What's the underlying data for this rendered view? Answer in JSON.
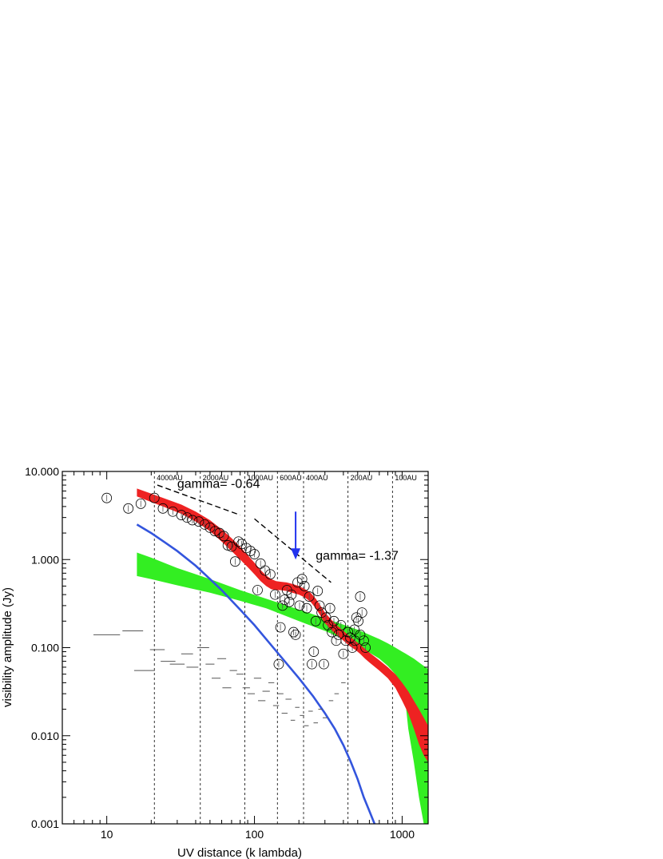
{
  "chart_data": {
    "type": "scatter",
    "xlabel": "UV distance  (k lambda)",
    "ylabel": "visibility amplitude (Jy)",
    "xscale": "log",
    "yscale": "log",
    "xlim": [
      5,
      1500
    ],
    "ylim": [
      0.001,
      10
    ],
    "x_tick_labels": [
      {
        "value": 10,
        "label": "10"
      },
      {
        "value": 100,
        "label": "100"
      },
      {
        "value": 1000,
        "label": "1000"
      }
    ],
    "y_tick_labels": [
      {
        "value": 10,
        "label": "10.000"
      },
      {
        "value": 1,
        "label": "1.000"
      },
      {
        "value": 0.1,
        "label": "0.100"
      },
      {
        "value": 0.01,
        "label": "0.010"
      },
      {
        "value": 0.001,
        "label": "0.001"
      }
    ],
    "scale_lines": [
      {
        "x": 21,
        "label": "4000AU"
      },
      {
        "x": 43,
        "label": "2000AU"
      },
      {
        "x": 86,
        "label": "1000AU"
      },
      {
        "x": 143,
        "label": "600AU"
      },
      {
        "x": 215,
        "label": "400AU"
      },
      {
        "x": 430,
        "label": "200AU"
      },
      {
        "x": 860,
        "label": "100AU"
      }
    ],
    "annotations": [
      {
        "text": "gamma= -0.64",
        "x": 30,
        "y": 6.5
      },
      {
        "text": "gamma= -1.37",
        "x": 260,
        "y": 1.0
      }
    ],
    "colors": {
      "red_band": "#ee2222",
      "green_band": "#33ee22",
      "blue_curve": "#3355dd",
      "arrow": "#2233ee",
      "data": "#000000",
      "errorbar": "#555555"
    },
    "red_band": {
      "x": [
        16,
        20,
        25,
        32,
        40,
        50,
        60,
        70,
        80,
        90,
        100,
        110,
        120,
        130,
        140,
        150,
        165,
        180,
        200,
        220,
        240,
        260,
        280,
        300,
        330,
        360,
        400,
        440,
        480,
        520,
        560,
        600,
        700,
        800,
        900,
        1000,
        1100,
        1200,
        1300,
        1400,
        1500
      ],
      "lo": [
        5.2,
        4.5,
        3.9,
        3.3,
        2.7,
        2.1,
        1.6,
        1.25,
        1.0,
        0.82,
        0.68,
        0.57,
        0.5,
        0.46,
        0.45,
        0.45,
        0.44,
        0.42,
        0.4,
        0.37,
        0.33,
        0.28,
        0.23,
        0.19,
        0.16,
        0.14,
        0.12,
        0.105,
        0.095,
        0.085,
        0.075,
        0.068,
        0.055,
        0.045,
        0.035,
        0.025,
        0.018,
        0.012,
        0.008,
        0.006,
        0.005
      ],
      "hi": [
        6.4,
        5.6,
        4.9,
        4.2,
        3.5,
        2.8,
        2.2,
        1.75,
        1.4,
        1.12,
        0.92,
        0.76,
        0.66,
        0.6,
        0.57,
        0.56,
        0.55,
        0.53,
        0.5,
        0.46,
        0.42,
        0.36,
        0.3,
        0.25,
        0.21,
        0.18,
        0.155,
        0.135,
        0.12,
        0.108,
        0.097,
        0.088,
        0.072,
        0.06,
        0.05,
        0.04,
        0.032,
        0.025,
        0.02,
        0.016,
        0.013
      ]
    },
    "green_band": {
      "x": [
        16,
        20,
        30,
        50,
        80,
        120,
        200,
        300,
        400,
        500,
        600,
        700,
        800,
        900,
        1000,
        1050,
        1100,
        1200,
        1300,
        1400,
        1500
      ],
      "lo": [
        0.65,
        0.6,
        0.51,
        0.42,
        0.34,
        0.28,
        0.2,
        0.155,
        0.125,
        0.105,
        0.088,
        0.075,
        0.062,
        0.05,
        0.036,
        0.025,
        0.012,
        0.005,
        0.002,
        0.001,
        0.001
      ],
      "hi": [
        1.2,
        1.05,
        0.8,
        0.6,
        0.45,
        0.36,
        0.27,
        0.215,
        0.182,
        0.16,
        0.14,
        0.125,
        0.112,
        0.1,
        0.09,
        0.086,
        0.082,
        0.075,
        0.068,
        0.062,
        0.057
      ]
    },
    "blue_curve": {
      "x": [
        16,
        20,
        25,
        30,
        40,
        50,
        60,
        80,
        100,
        120,
        150,
        200,
        250,
        300,
        350,
        400,
        450,
        500,
        550,
        600,
        650,
        680
      ],
      "y": [
        2.5,
        2.0,
        1.55,
        1.25,
        0.85,
        0.6,
        0.45,
        0.27,
        0.18,
        0.125,
        0.08,
        0.045,
        0.028,
        0.018,
        0.012,
        0.0078,
        0.005,
        0.0032,
        0.002,
        0.0014,
        0.001,
        0.0009
      ]
    },
    "power_law_lines": [
      {
        "name": "gamma= -0.64",
        "x": [
          22,
          80
        ],
        "y": [
          7.0,
          3.2
        ]
      },
      {
        "name": "gamma= -1.37",
        "x": [
          100,
          330
        ],
        "y": [
          2.9,
          0.55
        ]
      }
    ],
    "arrow": {
      "x": 190,
      "y_from": 3.5,
      "y_to": 1.0
    },
    "circle_points": [
      {
        "x": 10,
        "y": 5.0
      },
      {
        "x": 14,
        "y": 3.8
      },
      {
        "x": 17,
        "y": 4.3
      },
      {
        "x": 21,
        "y": 5.0
      },
      {
        "x": 24,
        "y": 3.8
      },
      {
        "x": 28,
        "y": 3.5
      },
      {
        "x": 32,
        "y": 3.2
      },
      {
        "x": 35,
        "y": 3.0
      },
      {
        "x": 38,
        "y": 2.8
      },
      {
        "x": 42,
        "y": 2.7
      },
      {
        "x": 46,
        "y": 2.5
      },
      {
        "x": 50,
        "y": 2.3
      },
      {
        "x": 54,
        "y": 2.1
      },
      {
        "x": 58,
        "y": 2.0
      },
      {
        "x": 62,
        "y": 1.85
      },
      {
        "x": 66,
        "y": 1.45
      },
      {
        "x": 70,
        "y": 1.4
      },
      {
        "x": 74,
        "y": 0.95
      },
      {
        "x": 78,
        "y": 1.6
      },
      {
        "x": 82,
        "y": 1.5
      },
      {
        "x": 88,
        "y": 1.35
      },
      {
        "x": 94,
        "y": 1.25
      },
      {
        "x": 100,
        "y": 1.15
      },
      {
        "x": 105,
        "y": 0.45
      },
      {
        "x": 110,
        "y": 0.9
      },
      {
        "x": 118,
        "y": 0.75
      },
      {
        "x": 128,
        "y": 0.68
      },
      {
        "x": 138,
        "y": 0.4
      },
      {
        "x": 146,
        "y": 0.065
      },
      {
        "x": 150,
        "y": 0.17
      },
      {
        "x": 155,
        "y": 0.3
      },
      {
        "x": 160,
        "y": 0.35
      },
      {
        "x": 166,
        "y": 0.45
      },
      {
        "x": 172,
        "y": 0.33
      },
      {
        "x": 178,
        "y": 0.4
      },
      {
        "x": 184,
        "y": 0.15
      },
      {
        "x": 190,
        "y": 0.14
      },
      {
        "x": 196,
        "y": 0.55
      },
      {
        "x": 202,
        "y": 0.3
      },
      {
        "x": 210,
        "y": 0.6
      },
      {
        "x": 218,
        "y": 0.5
      },
      {
        "x": 226,
        "y": 0.28
      },
      {
        "x": 235,
        "y": 0.38
      },
      {
        "x": 245,
        "y": 0.065
      },
      {
        "x": 252,
        "y": 0.09
      },
      {
        "x": 260,
        "y": 0.2
      },
      {
        "x": 268,
        "y": 0.44
      },
      {
        "x": 276,
        "y": 0.3
      },
      {
        "x": 285,
        "y": 0.25
      },
      {
        "x": 295,
        "y": 0.065
      },
      {
        "x": 305,
        "y": 0.22
      },
      {
        "x": 315,
        "y": 0.18
      },
      {
        "x": 325,
        "y": 0.28
      },
      {
        "x": 335,
        "y": 0.15
      },
      {
        "x": 345,
        "y": 0.2
      },
      {
        "x": 358,
        "y": 0.12
      },
      {
        "x": 370,
        "y": 0.14
      },
      {
        "x": 385,
        "y": 0.18
      },
      {
        "x": 400,
        "y": 0.085
      },
      {
        "x": 415,
        "y": 0.12
      },
      {
        "x": 430,
        "y": 0.15
      },
      {
        "x": 445,
        "y": 0.13
      },
      {
        "x": 460,
        "y": 0.1
      },
      {
        "x": 475,
        "y": 0.16
      },
      {
        "x": 490,
        "y": 0.22
      },
      {
        "x": 505,
        "y": 0.2
      },
      {
        "x": 520,
        "y": 0.38
      },
      {
        "x": 535,
        "y": 0.25
      },
      {
        "x": 550,
        "y": 0.12
      },
      {
        "x": 565,
        "y": 0.1
      },
      {
        "x": 520,
        "y": 0.14
      },
      {
        "x": 480,
        "y": 0.12
      }
    ],
    "bar_points": [
      {
        "x": 10,
        "y": 0.14,
        "w": 0.18
      },
      {
        "x": 15,
        "y": 0.155,
        "w": 0.14
      },
      {
        "x": 18,
        "y": 0.055,
        "w": 0.14
      },
      {
        "x": 22,
        "y": 0.095,
        "w": 0.1
      },
      {
        "x": 26,
        "y": 0.07,
        "w": 0.1
      },
      {
        "x": 30,
        "y": 0.065,
        "w": 0.1
      },
      {
        "x": 35,
        "y": 0.085,
        "w": 0.08
      },
      {
        "x": 38,
        "y": 0.06,
        "w": 0.08
      },
      {
        "x": 45,
        "y": 0.1,
        "w": 0.08
      },
      {
        "x": 50,
        "y": 0.065,
        "w": 0.06
      },
      {
        "x": 55,
        "y": 0.045,
        "w": 0.06
      },
      {
        "x": 60,
        "y": 0.075,
        "w": 0.06
      },
      {
        "x": 65,
        "y": 0.035,
        "w": 0.06
      },
      {
        "x": 72,
        "y": 0.055,
        "w": 0.05
      },
      {
        "x": 80,
        "y": 0.05,
        "w": 0.05
      },
      {
        "x": 88,
        "y": 0.035,
        "w": 0.05
      },
      {
        "x": 95,
        "y": 0.03,
        "w": 0.05
      },
      {
        "x": 105,
        "y": 0.045,
        "w": 0.05
      },
      {
        "x": 112,
        "y": 0.025,
        "w": 0.05
      },
      {
        "x": 120,
        "y": 0.032,
        "w": 0.05
      },
      {
        "x": 130,
        "y": 0.04,
        "w": 0.04
      },
      {
        "x": 140,
        "y": 0.022,
        "w": 0.04
      },
      {
        "x": 150,
        "y": 0.03,
        "w": 0.04
      },
      {
        "x": 160,
        "y": 0.018,
        "w": 0.04
      },
      {
        "x": 170,
        "y": 0.026,
        "w": 0.04
      },
      {
        "x": 182,
        "y": 0.015,
        "w": 0.03
      },
      {
        "x": 195,
        "y": 0.021,
        "w": 0.03
      },
      {
        "x": 210,
        "y": 0.017,
        "w": 0.03
      },
      {
        "x": 225,
        "y": 0.013,
        "w": 0.03
      },
      {
        "x": 240,
        "y": 0.019,
        "w": 0.03
      },
      {
        "x": 260,
        "y": 0.014,
        "w": 0.03
      },
      {
        "x": 280,
        "y": 0.02,
        "w": 0.03
      },
      {
        "x": 300,
        "y": 0.016,
        "w": 0.03
      },
      {
        "x": 330,
        "y": 0.025,
        "w": 0.03
      },
      {
        "x": 360,
        "y": 0.03,
        "w": 0.03
      },
      {
        "x": 400,
        "y": 0.04,
        "w": 0.03
      }
    ]
  }
}
